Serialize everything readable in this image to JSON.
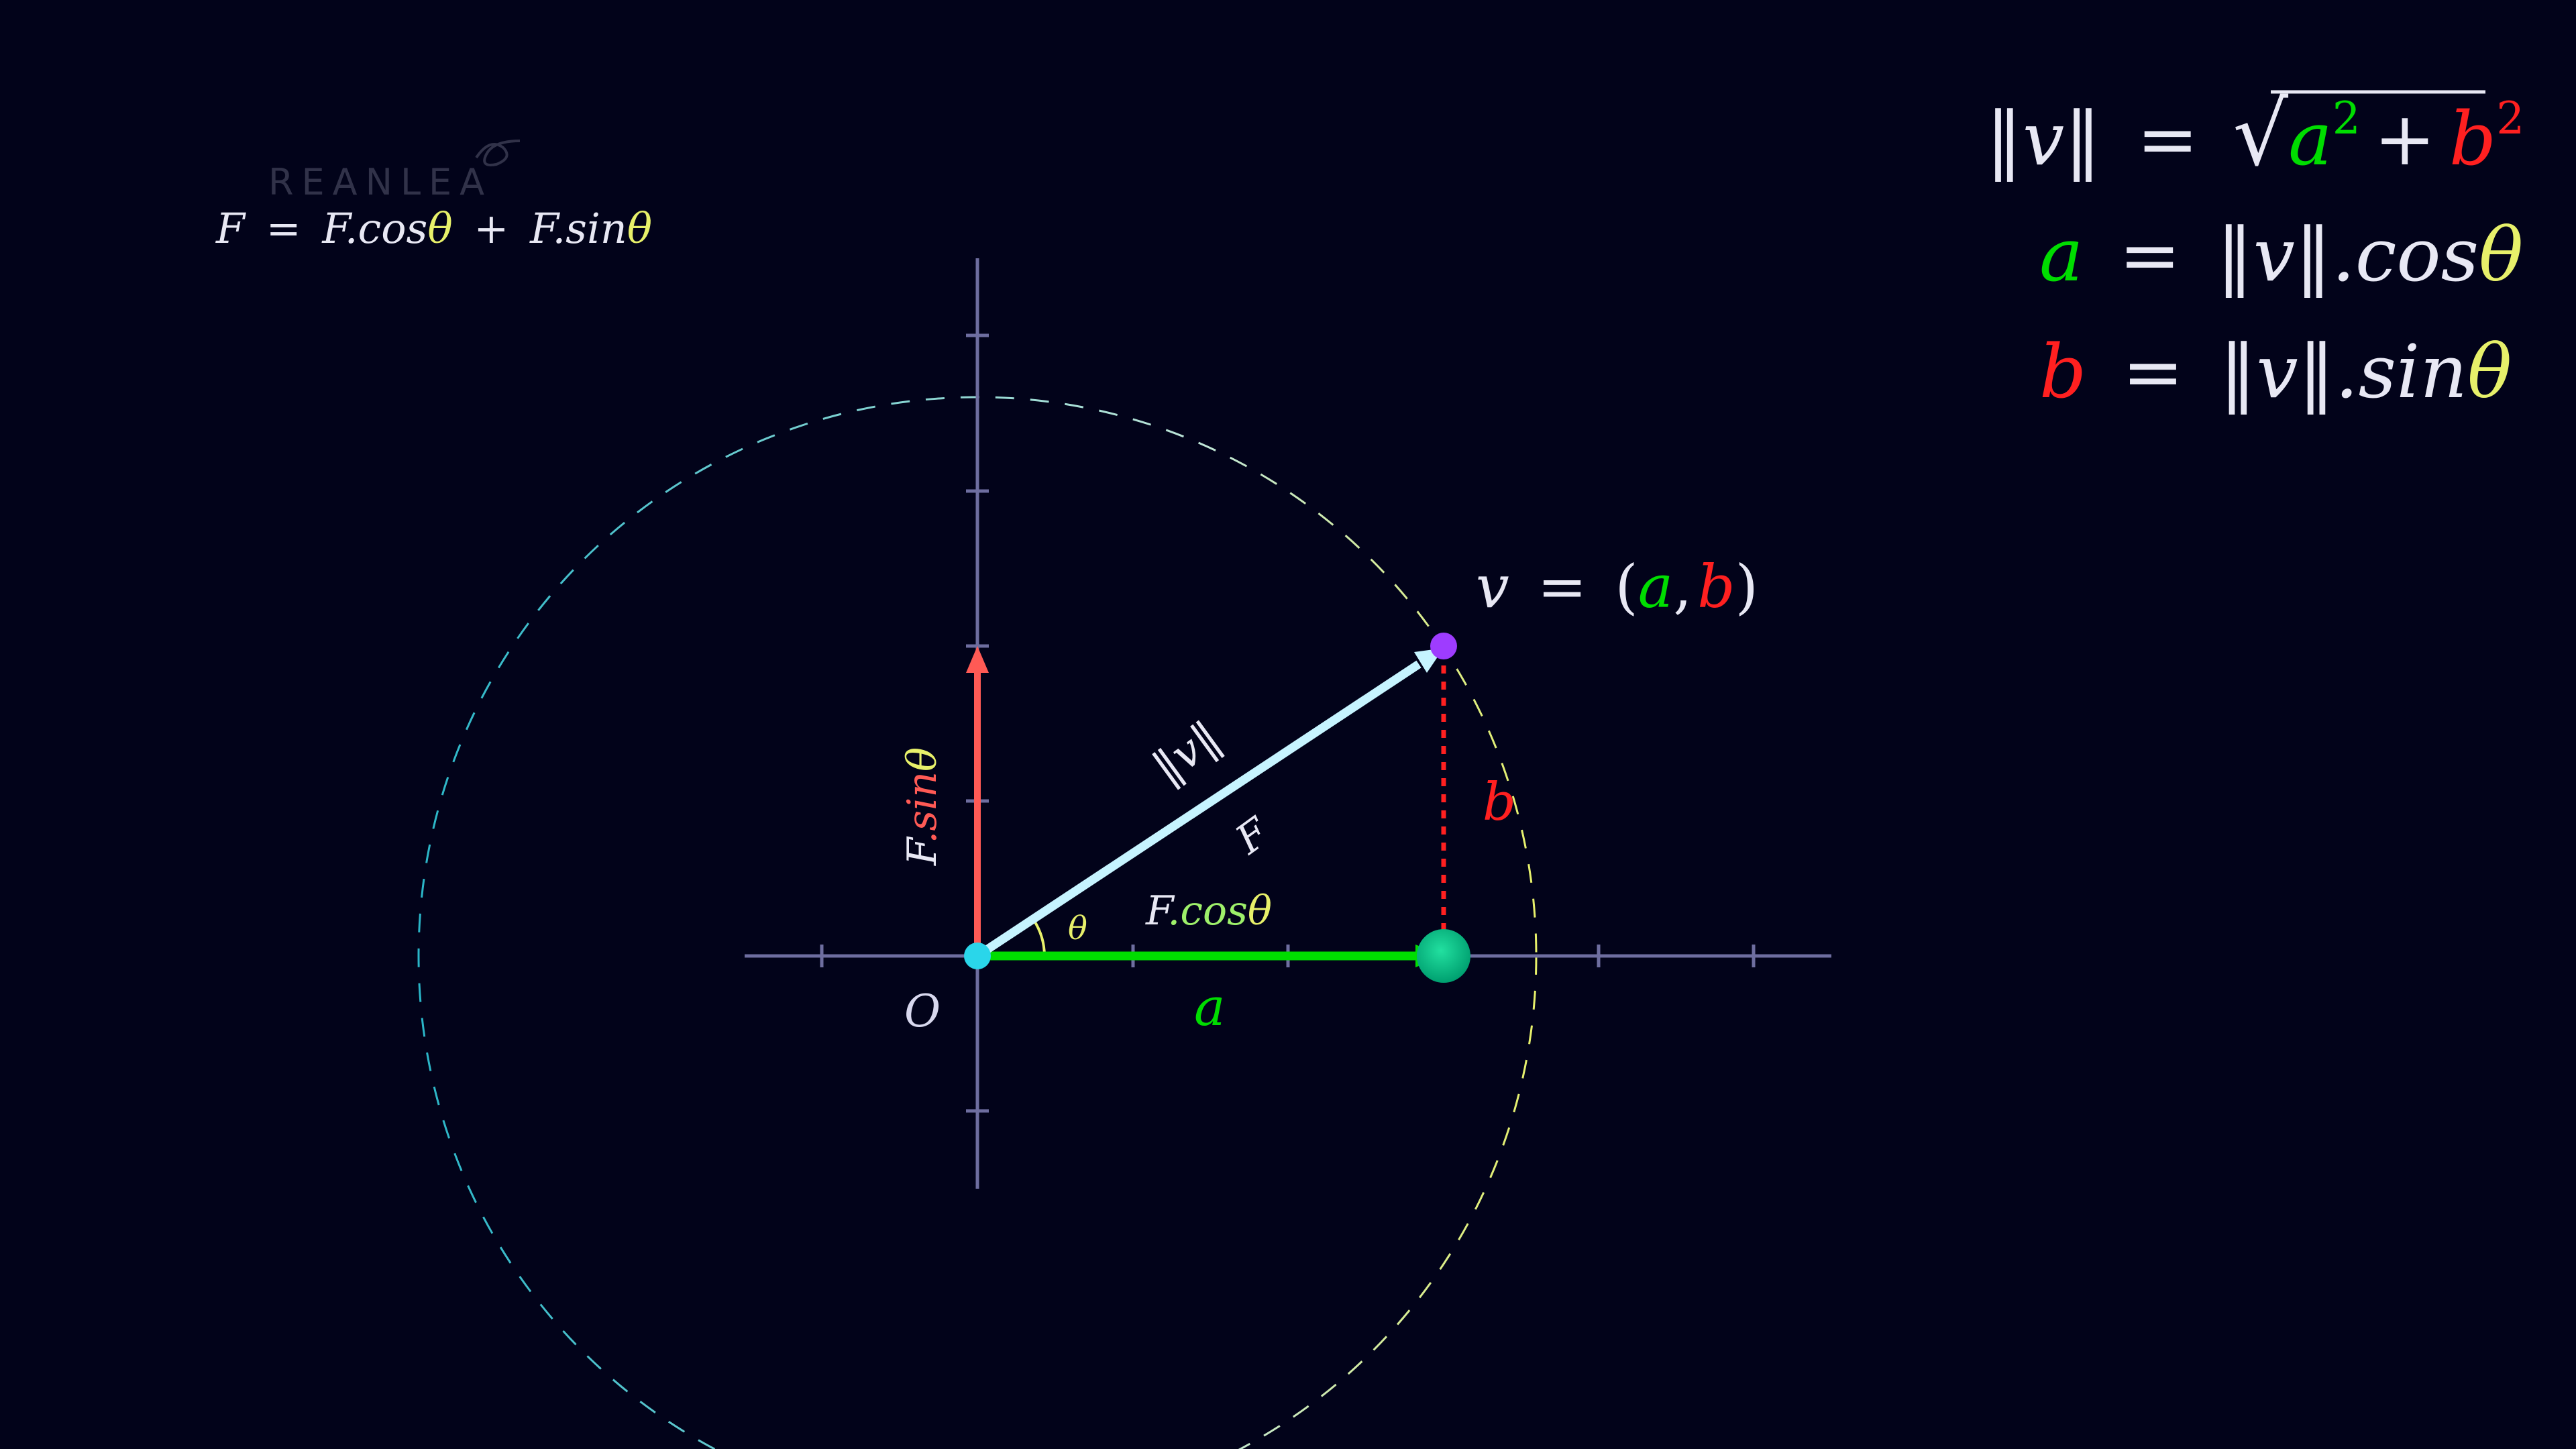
{
  "logo": {
    "text": "REANLEA"
  },
  "top_formula": {
    "lhs": "F",
    "eq": "=",
    "f1": "F.cos",
    "theta1": "θ",
    "plus": "+",
    "f2": "F.sin",
    "theta2": "θ"
  },
  "right_formulas": {
    "norm_lhs": "‖v‖",
    "eq": "=",
    "sqrt": "√",
    "a_sq": "a",
    "sq_exp": "2",
    "plus": "+",
    "b_sq": "b",
    "a_var": "a",
    "b_var": "b",
    "norm_cos": "‖v‖.cos",
    "norm_sin": "‖v‖.sin",
    "theta": "θ"
  },
  "point_label": {
    "v": "v",
    "eq": "=",
    "open": "(",
    "a": "a",
    "comma": ",",
    "b": "b",
    "close": ")"
  },
  "labels": {
    "origin": "O",
    "norm_v": "‖v‖",
    "force": "F",
    "theta": "θ",
    "b_side": "b",
    "a_side": "a",
    "fcos_prefix": "F",
    "fcos_rest": ".cos",
    "fcos_theta": "θ",
    "fsin_prefix": "F",
    "fsin_rest": ".sin",
    "fsin_theta": "θ"
  },
  "colors": {
    "background": "#02031a",
    "axis": "#6e6ea0",
    "vector": "#c6f4ff",
    "green": "#00dd00",
    "red": "#ff2020",
    "salmon": "#ff5a55",
    "theta_yellow": "#e7f06a",
    "purple_dot": "#9e3cff",
    "cyan_dot": "#2ad6ea",
    "text": "#e8e8f4"
  }
}
